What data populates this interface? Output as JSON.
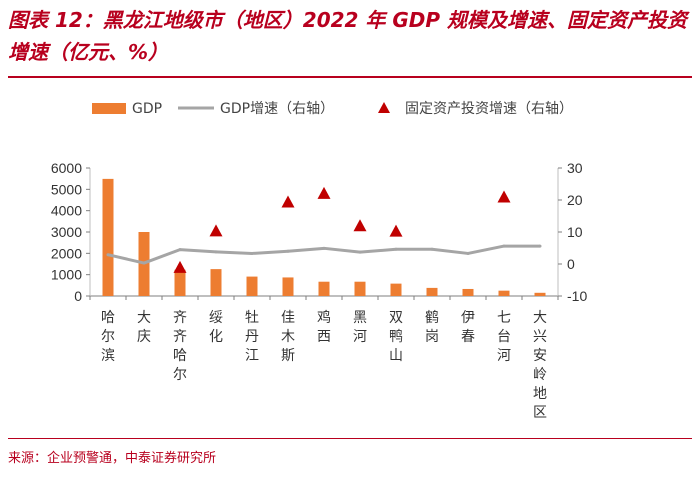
{
  "title": "图表 12：黑龙江地级市（地区）2022 年 GDP 规模及增速、固定资产投资增速（亿元、%）",
  "source": "来源：企业预警通，中泰证券研究所",
  "colors": {
    "title": "#b8001e",
    "gdp_bar": "#ed7d31",
    "gdp_growth_line": "#a5a5a5",
    "fai_marker": "#c00000"
  },
  "chart_data": {
    "type": "bar",
    "title": "黑龙江地级市（地区）2022 年 GDP 规模及增速、固定资产投资增速",
    "categories": [
      "哈尔滨",
      "大庆",
      "齐齐哈尔",
      "绥化",
      "牡丹江",
      "佳木斯",
      "鸡西",
      "黑河",
      "双鸭山",
      "鹤岗",
      "伊春",
      "七台河",
      "大兴安岭地区"
    ],
    "series": [
      {
        "name": "GDP",
        "type": "bar",
        "axis": "left",
        "values": [
          5490,
          3000,
          1230,
          1260,
          910,
          870,
          670,
          670,
          580,
          380,
          330,
          250,
          150
        ]
      },
      {
        "name": "GDP增速（右轴）",
        "type": "line",
        "axis": "right",
        "values": [
          2.9,
          0.3,
          4.5,
          3.8,
          3.3,
          4.0,
          4.9,
          3.7,
          4.6,
          4.6,
          3.3,
          5.6,
          5.6
        ]
      },
      {
        "name": "固定资产投资增速（右轴）",
        "type": "scatter",
        "axis": "right",
        "values": [
          null,
          null,
          -1.2,
          10.2,
          null,
          19.2,
          21.9,
          11.8,
          10.1,
          null,
          null,
          20.8,
          null
        ]
      }
    ],
    "left_axis": {
      "ylim": [
        0,
        6000
      ],
      "ticks": [
        0,
        1000,
        2000,
        3000,
        4000,
        5000,
        6000
      ]
    },
    "right_axis": {
      "ylim": [
        -10,
        30
      ],
      "ticks": [
        -10,
        0,
        10,
        20,
        30
      ]
    },
    "legend": {
      "position": "top",
      "labels": [
        "GDP",
        "GDP增速（右轴）",
        "固定资产投资增速（右轴）"
      ]
    }
  }
}
